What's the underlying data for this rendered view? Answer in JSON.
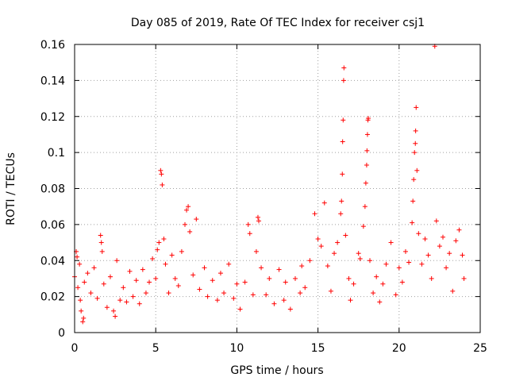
{
  "chart_data": {
    "type": "scatter",
    "title": "Day 085 of 2019, Rate Of TEC Index for receiver csj1",
    "xlabel": "GPS time / hours",
    "ylabel": "ROTI / TECUs",
    "xlim": [
      0,
      25
    ],
    "ylim": [
      0,
      0.16
    ],
    "xticks": [
      0,
      5,
      10,
      15,
      20,
      25
    ],
    "xtick_labels": [
      "0",
      "5",
      "10",
      "15",
      "20",
      "25"
    ],
    "yticks": [
      0,
      0.02,
      0.04,
      0.06,
      0.08,
      0.1,
      0.12,
      0.14,
      0.16
    ],
    "ytick_labels": [
      "0",
      "0.02",
      "0.04",
      "0.06",
      "0.08",
      "0.1",
      "0.12",
      "0.14",
      "0.16"
    ],
    "grid": true,
    "marker": "+",
    "series_color": "#ff0000",
    "series": [
      {
        "name": "ROTI",
        "points": [
          [
            0.0,
            0.031
          ],
          [
            0.1,
            0.045
          ],
          [
            0.15,
            0.042
          ],
          [
            0.2,
            0.025
          ],
          [
            0.3,
            0.038
          ],
          [
            0.35,
            0.018
          ],
          [
            0.4,
            0.012
          ],
          [
            0.5,
            0.006
          ],
          [
            0.55,
            0.008
          ],
          [
            0.6,
            0.028
          ],
          [
            0.8,
            0.033
          ],
          [
            1.0,
            0.022
          ],
          [
            1.2,
            0.036
          ],
          [
            1.4,
            0.019
          ],
          [
            1.6,
            0.054
          ],
          [
            1.65,
            0.05
          ],
          [
            1.7,
            0.045
          ],
          [
            1.8,
            0.027
          ],
          [
            2.0,
            0.014
          ],
          [
            2.2,
            0.031
          ],
          [
            2.4,
            0.012
          ],
          [
            2.5,
            0.009
          ],
          [
            2.6,
            0.04
          ],
          [
            2.8,
            0.018
          ],
          [
            3.0,
            0.025
          ],
          [
            3.2,
            0.017
          ],
          [
            3.4,
            0.034
          ],
          [
            3.6,
            0.02
          ],
          [
            3.8,
            0.029
          ],
          [
            4.0,
            0.016
          ],
          [
            4.2,
            0.035
          ],
          [
            4.4,
            0.022
          ],
          [
            4.6,
            0.028
          ],
          [
            4.8,
            0.041
          ],
          [
            5.0,
            0.03
          ],
          [
            5.1,
            0.046
          ],
          [
            5.2,
            0.05
          ],
          [
            5.3,
            0.09
          ],
          [
            5.35,
            0.088
          ],
          [
            5.4,
            0.082
          ],
          [
            5.5,
            0.052
          ],
          [
            5.6,
            0.038
          ],
          [
            5.8,
            0.022
          ],
          [
            6.0,
            0.043
          ],
          [
            6.2,
            0.03
          ],
          [
            6.4,
            0.026
          ],
          [
            6.6,
            0.045
          ],
          [
            6.8,
            0.06
          ],
          [
            6.9,
            0.068
          ],
          [
            7.0,
            0.07
          ],
          [
            7.1,
            0.056
          ],
          [
            7.3,
            0.032
          ],
          [
            7.5,
            0.063
          ],
          [
            7.7,
            0.024
          ],
          [
            8.0,
            0.036
          ],
          [
            8.2,
            0.02
          ],
          [
            8.5,
            0.029
          ],
          [
            8.8,
            0.018
          ],
          [
            9.0,
            0.033
          ],
          [
            9.2,
            0.022
          ],
          [
            9.5,
            0.038
          ],
          [
            9.8,
            0.019
          ],
          [
            10.0,
            0.027
          ],
          [
            10.2,
            0.013
          ],
          [
            10.5,
            0.028
          ],
          [
            10.7,
            0.06
          ],
          [
            10.8,
            0.055
          ],
          [
            11.0,
            0.021
          ],
          [
            11.2,
            0.045
          ],
          [
            11.3,
            0.064
          ],
          [
            11.35,
            0.062
          ],
          [
            11.5,
            0.036
          ],
          [
            11.8,
            0.021
          ],
          [
            12.0,
            0.03
          ],
          [
            12.3,
            0.016
          ],
          [
            12.6,
            0.035
          ],
          [
            12.9,
            0.018
          ],
          [
            13.0,
            0.028
          ],
          [
            13.3,
            0.013
          ],
          [
            13.6,
            0.03
          ],
          [
            13.9,
            0.022
          ],
          [
            14.0,
            0.037
          ],
          [
            14.2,
            0.025
          ],
          [
            14.5,
            0.04
          ],
          [
            14.8,
            0.066
          ],
          [
            15.0,
            0.052
          ],
          [
            15.2,
            0.048
          ],
          [
            15.4,
            0.072
          ],
          [
            15.6,
            0.037
          ],
          [
            15.8,
            0.023
          ],
          [
            16.0,
            0.044
          ],
          [
            16.2,
            0.05
          ],
          [
            16.4,
            0.066
          ],
          [
            16.45,
            0.073
          ],
          [
            16.5,
            0.088
          ],
          [
            16.52,
            0.106
          ],
          [
            16.55,
            0.118
          ],
          [
            16.58,
            0.14
          ],
          [
            16.6,
            0.147
          ],
          [
            16.7,
            0.054
          ],
          [
            16.9,
            0.03
          ],
          [
            17.0,
            0.018
          ],
          [
            17.2,
            0.027
          ],
          [
            17.5,
            0.044
          ],
          [
            17.6,
            0.041
          ],
          [
            17.8,
            0.059
          ],
          [
            17.9,
            0.07
          ],
          [
            17.95,
            0.083
          ],
          [
            18.0,
            0.093
          ],
          [
            18.02,
            0.101
          ],
          [
            18.05,
            0.11
          ],
          [
            18.08,
            0.118
          ],
          [
            18.1,
            0.119
          ],
          [
            18.2,
            0.04
          ],
          [
            18.4,
            0.022
          ],
          [
            18.6,
            0.031
          ],
          [
            18.8,
            0.017
          ],
          [
            19.0,
            0.027
          ],
          [
            19.2,
            0.038
          ],
          [
            19.5,
            0.05
          ],
          [
            19.8,
            0.021
          ],
          [
            20.0,
            0.036
          ],
          [
            20.2,
            0.028
          ],
          [
            20.4,
            0.045
          ],
          [
            20.6,
            0.039
          ],
          [
            20.8,
            0.061
          ],
          [
            20.85,
            0.073
          ],
          [
            20.9,
            0.085
          ],
          [
            20.95,
            0.1
          ],
          [
            21.0,
            0.105
          ],
          [
            21.02,
            0.112
          ],
          [
            21.05,
            0.125
          ],
          [
            21.1,
            0.09
          ],
          [
            21.2,
            0.055
          ],
          [
            21.4,
            0.038
          ],
          [
            21.6,
            0.052
          ],
          [
            21.8,
            0.043
          ],
          [
            22.0,
            0.03
          ],
          [
            22.2,
            0.159
          ],
          [
            22.3,
            0.062
          ],
          [
            22.5,
            0.048
          ],
          [
            22.7,
            0.053
          ],
          [
            22.9,
            0.036
          ],
          [
            23.1,
            0.044
          ],
          [
            23.3,
            0.023
          ],
          [
            23.5,
            0.051
          ],
          [
            23.7,
            0.057
          ],
          [
            23.9,
            0.043
          ],
          [
            24.0,
            0.03
          ]
        ]
      }
    ]
  }
}
